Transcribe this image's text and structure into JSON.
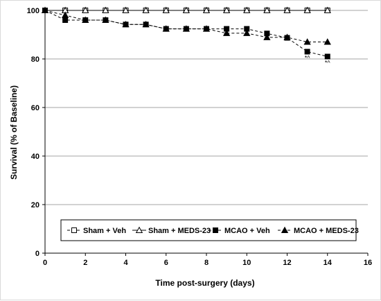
{
  "chart_data": {
    "type": "line",
    "title": "",
    "xlabel": "Time post-surgery (days)",
    "ylabel": "Survival (% of Baseline)",
    "xlim": [
      0,
      16
    ],
    "ylim": [
      0,
      100
    ],
    "x_ticks": [
      "0",
      "2",
      "4",
      "6",
      "8",
      "10",
      "12",
      "14",
      "16"
    ],
    "y_ticks": [
      "0",
      "20",
      "40",
      "60",
      "80",
      "100"
    ],
    "grid": "horizontal",
    "legend_position": "bottom",
    "series": [
      {
        "name": "Sham + Veh",
        "marker": "open-square",
        "line": "dashed",
        "x": [
          0,
          1,
          2,
          3,
          4,
          5,
          6,
          7,
          8,
          9,
          10,
          11,
          12,
          13,
          14
        ],
        "values": [
          100,
          100,
          100,
          100,
          100,
          100,
          100,
          100,
          100,
          100,
          100,
          100,
          100,
          100,
          100
        ]
      },
      {
        "name": "Sham + MEDS-23",
        "marker": "open-triangle",
        "line": "solid",
        "x": [
          0,
          1,
          2,
          3,
          4,
          5,
          6,
          7,
          8,
          9,
          10,
          11,
          12,
          13,
          14
        ],
        "values": [
          100,
          100,
          100,
          100,
          100,
          100,
          100,
          100,
          100,
          100,
          100,
          100,
          100,
          100,
          100
        ]
      },
      {
        "name": "MCAO + Veh",
        "marker": "filled-square",
        "line": "dashed",
        "x": [
          0,
          1,
          2,
          3,
          4,
          5,
          6,
          7,
          8,
          9,
          10,
          11,
          12,
          13,
          14
        ],
        "values": [
          100,
          96,
          96,
          96,
          94.2,
          94.2,
          92.4,
          92.4,
          92.4,
          92.4,
          92.4,
          90.5,
          88.7,
          83,
          81
        ]
      },
      {
        "name": "MCAO + MEDS-23",
        "marker": "filled-triangle",
        "line": "dashed",
        "x": [
          0,
          1,
          2,
          3,
          4,
          5,
          6,
          7,
          8,
          9,
          10,
          11,
          12,
          13,
          14
        ],
        "values": [
          100,
          98,
          96,
          96,
          94.2,
          94.2,
          92.4,
          92.4,
          92.4,
          90.6,
          90.6,
          88.9,
          88.9,
          87,
          87
        ]
      }
    ],
    "annotations": [
      {
        "text": "*^",
        "x": 13,
        "y": 83
      },
      {
        "text": "*^",
        "x": 14,
        "y": 81
      }
    ]
  }
}
